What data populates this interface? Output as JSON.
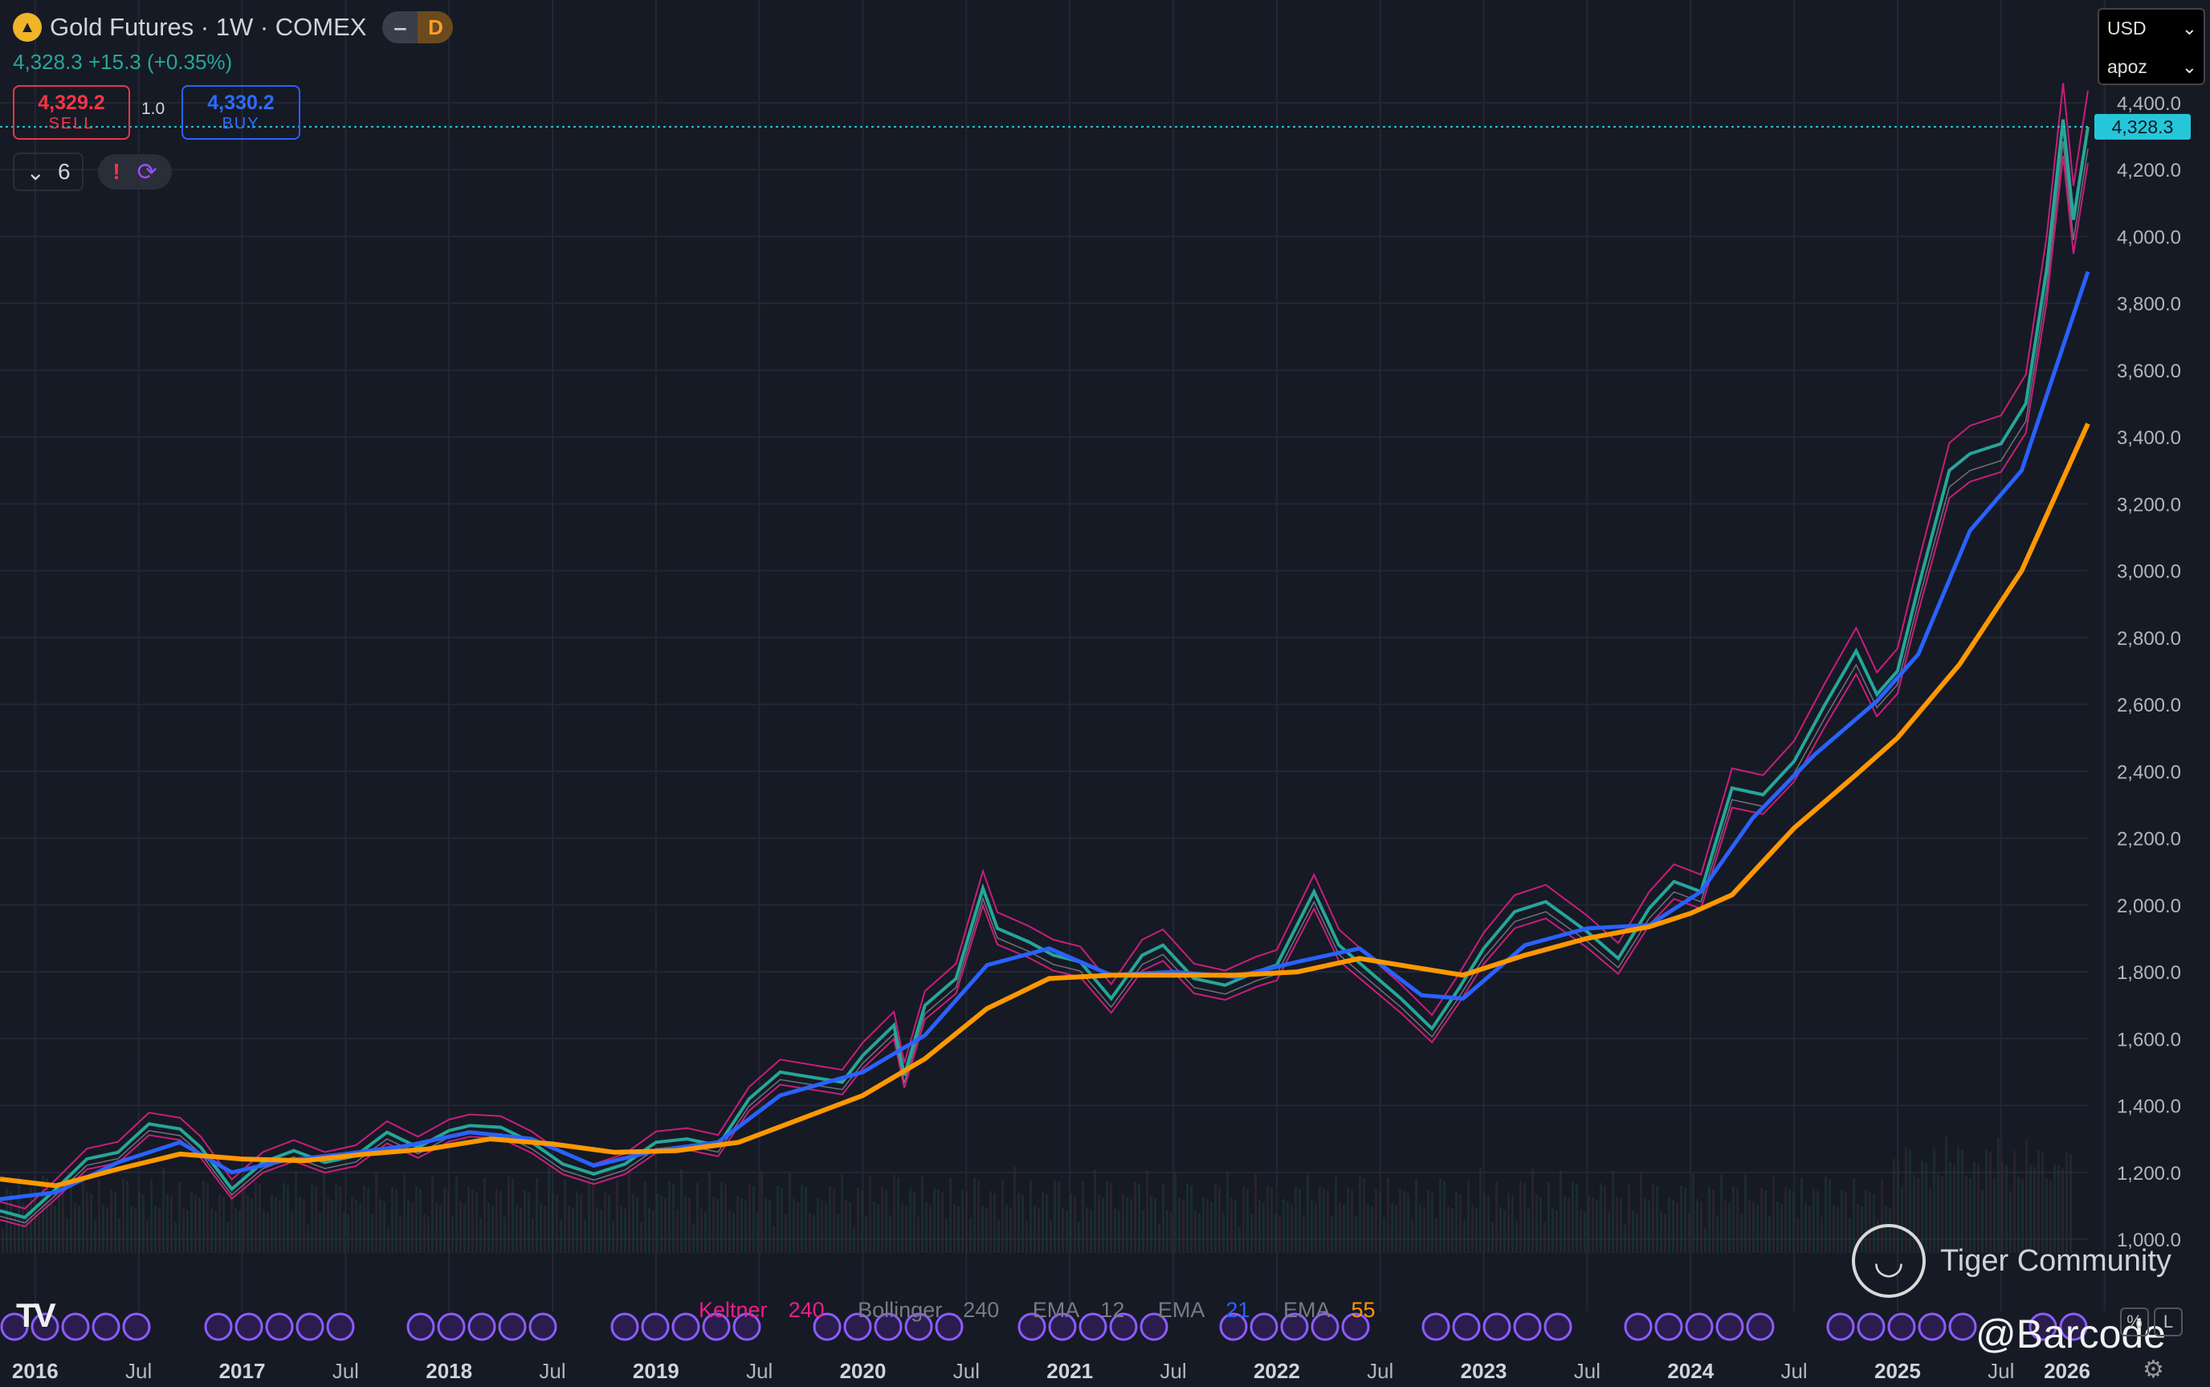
{
  "symbol": {
    "title": "Gold Futures · 1W · COMEX",
    "logo_icon": "gold-bars-icon",
    "mode_button": "‒",
    "delay_badge": "D"
  },
  "last": {
    "text": "4,328.3 +15.3 (+0.35%)"
  },
  "trade": {
    "sell_value": "4,329.2",
    "sell_label": "SELL",
    "quantity": "1.0",
    "buy_value": "4,330.2",
    "buy_label": "BUY"
  },
  "indicators_toggle": {
    "count": "6"
  },
  "currency": {
    "value": "USD",
    "unit": "apoz"
  },
  "last_price_tag": "4,328.3",
  "legend": [
    {
      "name": "Keltner",
      "value": "240",
      "color": "#e91e8c"
    },
    {
      "name": "Bollinger",
      "value": "240",
      "color": "#9598a1"
    },
    {
      "name": "EMA",
      "value": "12",
      "color": "#9598a1"
    },
    {
      "name": "EMA",
      "value": "21",
      "color": "#2962ff"
    },
    {
      "name": "EMA",
      "value": "55",
      "color": "#ff9800"
    }
  ],
  "watermark": {
    "text": "Tiger Community",
    "tag": "@Barcode"
  },
  "scale_buttons": [
    "%",
    "L"
  ],
  "chart_data": {
    "type": "line",
    "title": "Gold Futures · 1W · COMEX",
    "y_ticks": [
      "1,000.0",
      "1,200.0",
      "1,400.0",
      "1,600.0",
      "1,800.0",
      "2,000.0",
      "2,200.0",
      "2,400.0",
      "2,600.0",
      "2,800.0",
      "3,000.0",
      "3,200.0",
      "3,400.0",
      "3,600.0",
      "3,800.0",
      "4,000.0",
      "4,200.0",
      "4,400.0"
    ],
    "x_ticks": [
      {
        "label": "2016",
        "t": 2016.0,
        "bold": true
      },
      {
        "label": "Jul",
        "t": 2016.5
      },
      {
        "label": "2017",
        "t": 2017.0,
        "bold": true
      },
      {
        "label": "Jul",
        "t": 2017.5
      },
      {
        "label": "2018",
        "t": 2018.0,
        "bold": true
      },
      {
        "label": "Jul",
        "t": 2018.5
      },
      {
        "label": "2019",
        "t": 2019.0,
        "bold": true
      },
      {
        "label": "Jul",
        "t": 2019.5
      },
      {
        "label": "2020",
        "t": 2020.0,
        "bold": true
      },
      {
        "label": "Jul",
        "t": 2020.5
      },
      {
        "label": "2021",
        "t": 2021.0,
        "bold": true
      },
      {
        "label": "Jul",
        "t": 2021.5
      },
      {
        "label": "2022",
        "t": 2022.0,
        "bold": true
      },
      {
        "label": "Jul",
        "t": 2022.5
      },
      {
        "label": "2023",
        "t": 2023.0,
        "bold": true
      },
      {
        "label": "Jul",
        "t": 2023.5
      },
      {
        "label": "2024",
        "t": 2024.0,
        "bold": true
      },
      {
        "label": "Jul",
        "t": 2024.5
      },
      {
        "label": "2025",
        "t": 2025.0,
        "bold": true
      },
      {
        "label": "Jul",
        "t": 2025.5
      },
      {
        "label": "2026",
        "t": 2026.0,
        "bold": true
      }
    ],
    "ylim": [
      1000,
      4400
    ],
    "xlim": [
      2015.83,
      2025.92
    ],
    "last_price": 4328.3,
    "series": [
      {
        "name": "Price",
        "color": "#26a69a",
        "points": [
          [
            2015.83,
            1085
          ],
          [
            2015.95,
            1065
          ],
          [
            2016.1,
            1150
          ],
          [
            2016.25,
            1240
          ],
          [
            2016.4,
            1260
          ],
          [
            2016.55,
            1345
          ],
          [
            2016.7,
            1330
          ],
          [
            2016.8,
            1275
          ],
          [
            2016.95,
            1150
          ],
          [
            2017.1,
            1230
          ],
          [
            2017.25,
            1265
          ],
          [
            2017.4,
            1230
          ],
          [
            2017.55,
            1250
          ],
          [
            2017.7,
            1320
          ],
          [
            2017.85,
            1275
          ],
          [
            2018.0,
            1325
          ],
          [
            2018.1,
            1340
          ],
          [
            2018.25,
            1335
          ],
          [
            2018.4,
            1290
          ],
          [
            2018.55,
            1225
          ],
          [
            2018.7,
            1195
          ],
          [
            2018.85,
            1225
          ],
          [
            2019.0,
            1290
          ],
          [
            2019.15,
            1300
          ],
          [
            2019.3,
            1280
          ],
          [
            2019.45,
            1420
          ],
          [
            2019.6,
            1500
          ],
          [
            2019.75,
            1485
          ],
          [
            2019.9,
            1470
          ],
          [
            2020.0,
            1550
          ],
          [
            2020.15,
            1640
          ],
          [
            2020.2,
            1490
          ],
          [
            2020.3,
            1700
          ],
          [
            2020.45,
            1780
          ],
          [
            2020.58,
            2050
          ],
          [
            2020.65,
            1930
          ],
          [
            2020.8,
            1890
          ],
          [
            2020.92,
            1850
          ],
          [
            2021.05,
            1830
          ],
          [
            2021.2,
            1720
          ],
          [
            2021.35,
            1850
          ],
          [
            2021.45,
            1880
          ],
          [
            2021.6,
            1780
          ],
          [
            2021.75,
            1760
          ],
          [
            2021.9,
            1800
          ],
          [
            2022.0,
            1820
          ],
          [
            2022.18,
            2040
          ],
          [
            2022.3,
            1880
          ],
          [
            2022.45,
            1800
          ],
          [
            2022.6,
            1720
          ],
          [
            2022.75,
            1630
          ],
          [
            2022.88,
            1750
          ],
          [
            2023.0,
            1870
          ],
          [
            2023.15,
            1980
          ],
          [
            2023.3,
            2010
          ],
          [
            2023.5,
            1920
          ],
          [
            2023.65,
            1840
          ],
          [
            2023.8,
            1990
          ],
          [
            2023.92,
            2070
          ],
          [
            2024.05,
            2040
          ],
          [
            2024.2,
            2350
          ],
          [
            2024.35,
            2330
          ],
          [
            2024.5,
            2430
          ],
          [
            2024.65,
            2600
          ],
          [
            2024.8,
            2760
          ],
          [
            2024.9,
            2630
          ],
          [
            2025.0,
            2700
          ],
          [
            2025.1,
            2950
          ],
          [
            2025.25,
            3300
          ],
          [
            2025.35,
            3350
          ],
          [
            2025.5,
            3380
          ],
          [
            2025.62,
            3500
          ],
          [
            2025.72,
            3900
          ],
          [
            2025.8,
            4350
          ],
          [
            2025.85,
            4050
          ],
          [
            2025.92,
            4328
          ]
        ]
      },
      {
        "name": "EMA 55",
        "color": "#ff9800",
        "points": [
          [
            2015.83,
            1180
          ],
          [
            2016.1,
            1160
          ],
          [
            2016.4,
            1210
          ],
          [
            2016.7,
            1255
          ],
          [
            2017.0,
            1240
          ],
          [
            2017.3,
            1235
          ],
          [
            2017.6,
            1255
          ],
          [
            2017.9,
            1270
          ],
          [
            2018.2,
            1300
          ],
          [
            2018.5,
            1285
          ],
          [
            2018.8,
            1260
          ],
          [
            2019.1,
            1265
          ],
          [
            2019.4,
            1290
          ],
          [
            2019.7,
            1360
          ],
          [
            2020.0,
            1430
          ],
          [
            2020.3,
            1540
          ],
          [
            2020.6,
            1690
          ],
          [
            2020.9,
            1780
          ],
          [
            2021.2,
            1790
          ],
          [
            2021.5,
            1790
          ],
          [
            2021.8,
            1790
          ],
          [
            2022.1,
            1800
          ],
          [
            2022.4,
            1840
          ],
          [
            2022.7,
            1810
          ],
          [
            2022.9,
            1790
          ],
          [
            2023.2,
            1850
          ],
          [
            2023.5,
            1900
          ],
          [
            2023.8,
            1935
          ],
          [
            2024.0,
            1975
          ],
          [
            2024.2,
            2030
          ],
          [
            2024.5,
            2230
          ],
          [
            2024.8,
            2390
          ],
          [
            2025.0,
            2500
          ],
          [
            2025.3,
            2720
          ],
          [
            2025.6,
            3000
          ],
          [
            2025.92,
            3440
          ]
        ]
      },
      {
        "name": "EMA 21",
        "color": "#2962ff",
        "points": [
          [
            2015.83,
            1120
          ],
          [
            2016.1,
            1140
          ],
          [
            2016.4,
            1230
          ],
          [
            2016.7,
            1290
          ],
          [
            2016.95,
            1200
          ],
          [
            2017.2,
            1235
          ],
          [
            2017.5,
            1255
          ],
          [
            2017.8,
            1280
          ],
          [
            2018.1,
            1320
          ],
          [
            2018.4,
            1300
          ],
          [
            2018.7,
            1220
          ],
          [
            2019.0,
            1265
          ],
          [
            2019.3,
            1290
          ],
          [
            2019.6,
            1430
          ],
          [
            2020.0,
            1500
          ],
          [
            2020.3,
            1610
          ],
          [
            2020.6,
            1820
          ],
          [
            2020.9,
            1870
          ],
          [
            2021.2,
            1790
          ],
          [
            2021.5,
            1800
          ],
          [
            2021.8,
            1785
          ],
          [
            2022.1,
            1830
          ],
          [
            2022.4,
            1870
          ],
          [
            2022.7,
            1730
          ],
          [
            2022.9,
            1720
          ],
          [
            2023.2,
            1880
          ],
          [
            2023.5,
            1930
          ],
          [
            2023.8,
            1940
          ],
          [
            2024.05,
            2040
          ],
          [
            2024.3,
            2260
          ],
          [
            2024.6,
            2450
          ],
          [
            2024.9,
            2610
          ],
          [
            2025.1,
            2750
          ],
          [
            2025.35,
            3120
          ],
          [
            2025.6,
            3300
          ],
          [
            2025.92,
            3895
          ]
        ]
      }
    ]
  }
}
